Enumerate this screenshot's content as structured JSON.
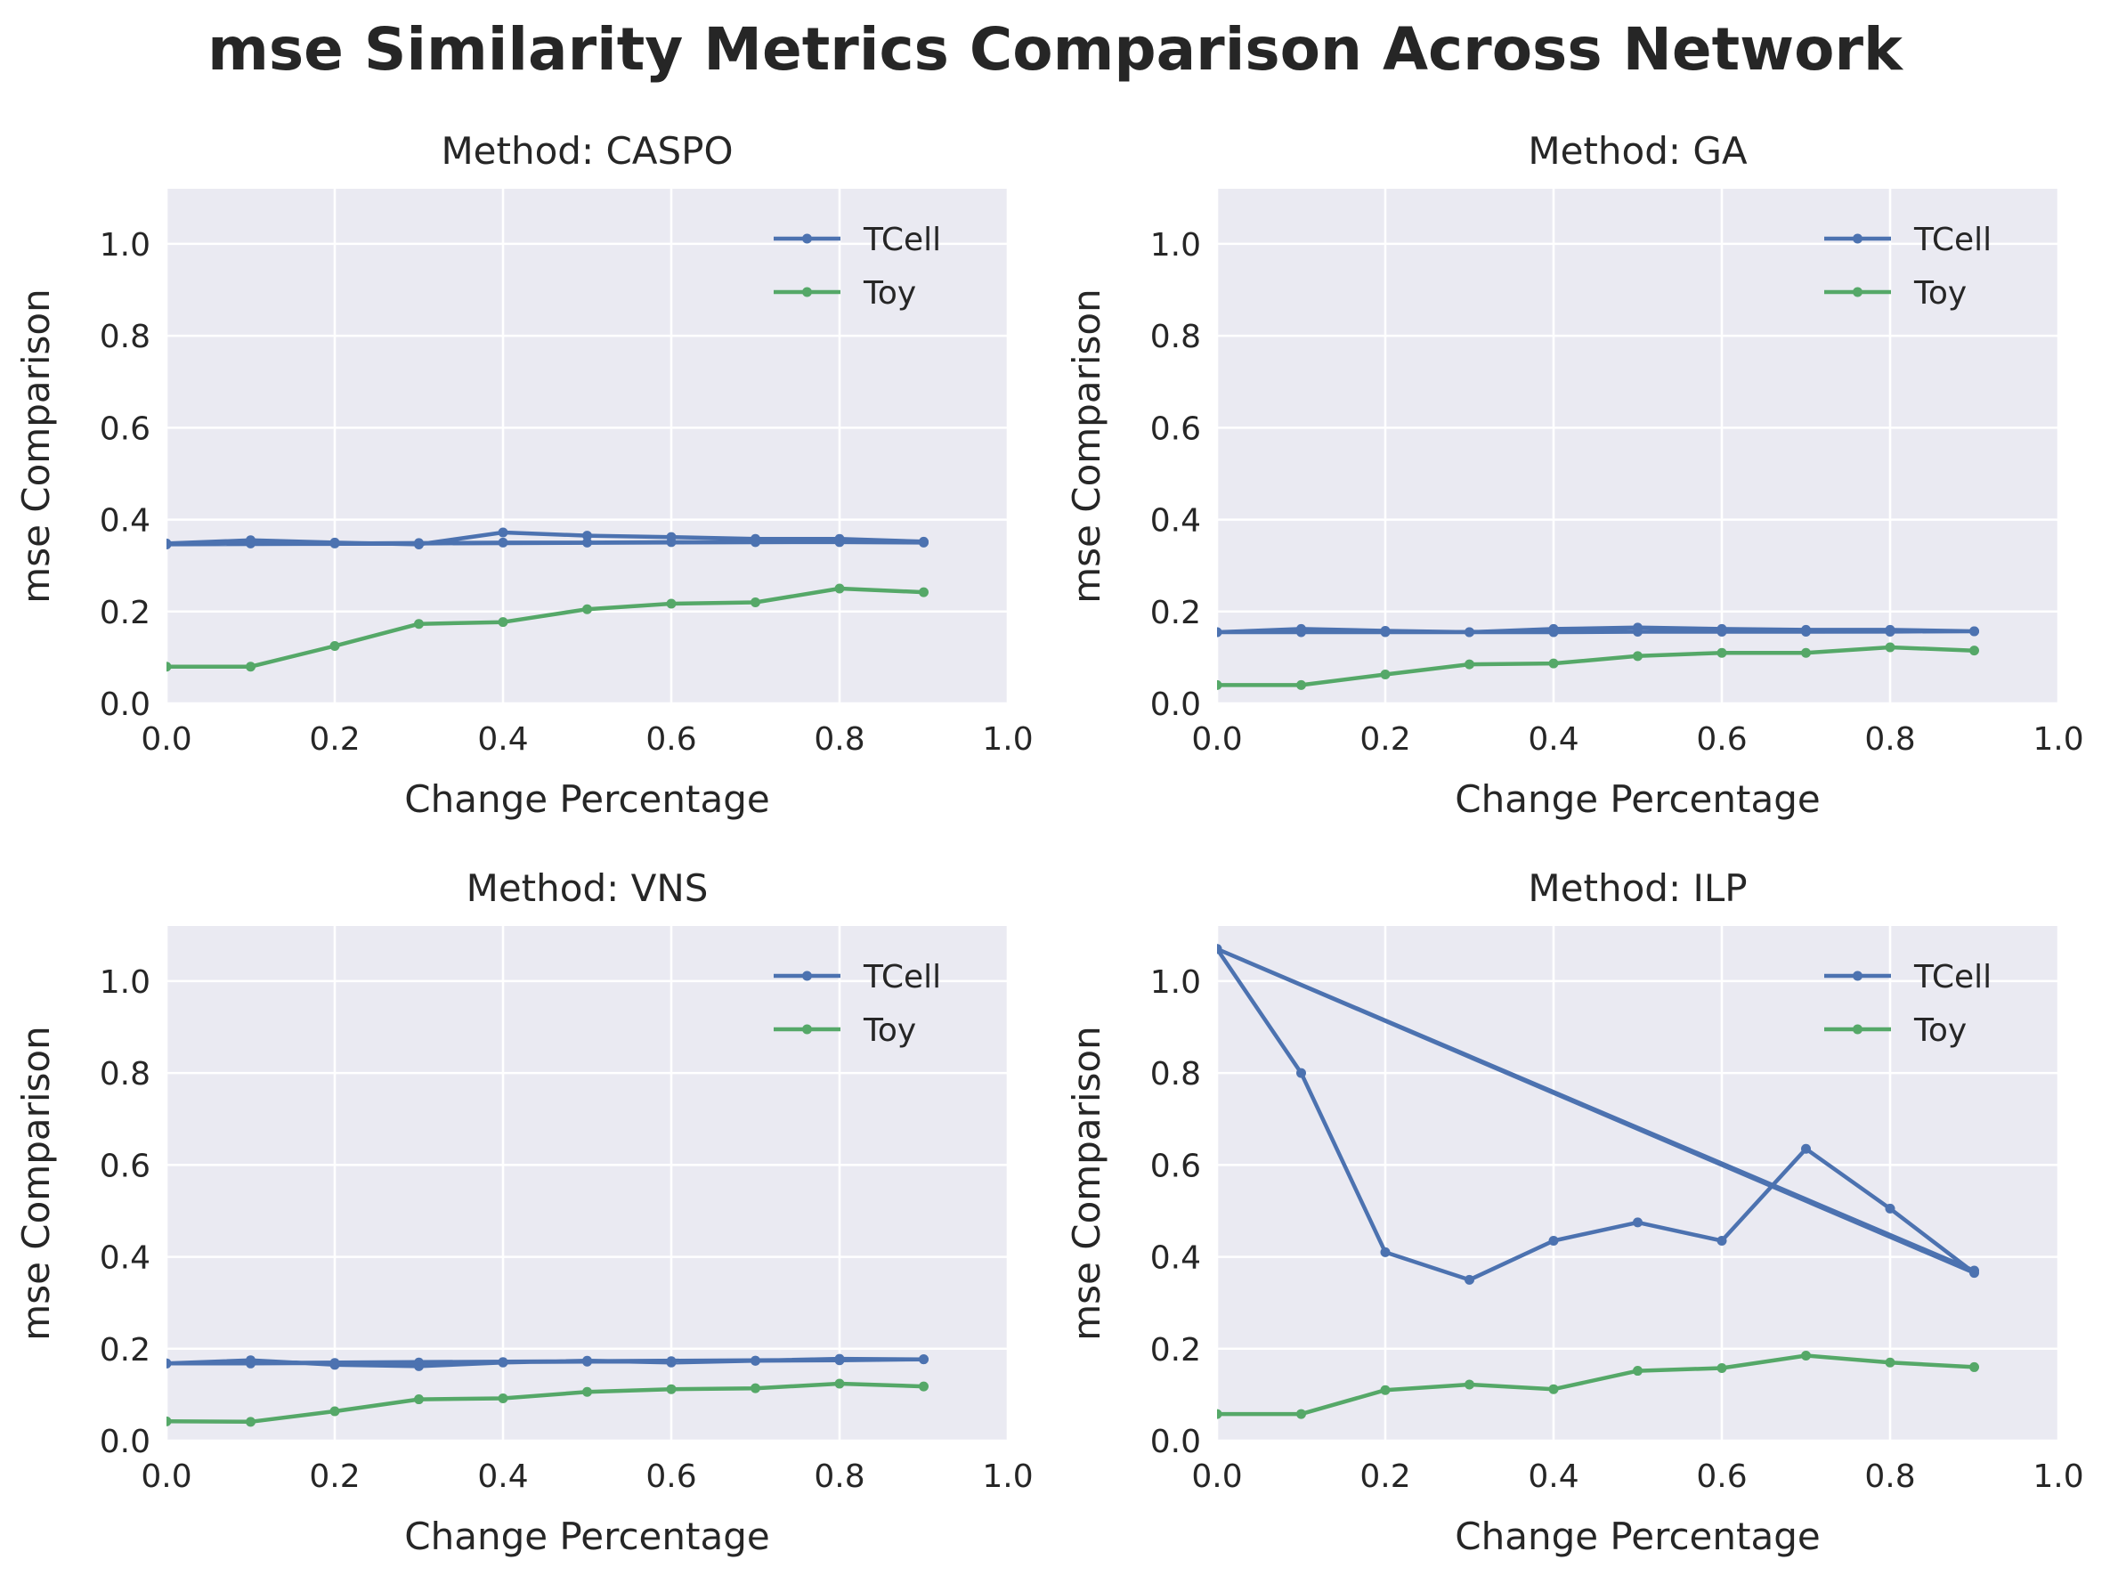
{
  "figure": {
    "title": "mse Similarity Metrics Comparison Across Network"
  },
  "chart_data": [
    {
      "type": "line",
      "title": "Method: CASPO",
      "xlabel": "Change Percentage",
      "ylabel": "mse Comparison",
      "xlim": [
        0.0,
        1.0
      ],
      "ylim": [
        0.0,
        1.12
      ],
      "xticks": [
        "0.0",
        "0.2",
        "0.4",
        "0.6",
        "0.8",
        "1.0"
      ],
      "yticks": [
        "0.0",
        "0.2",
        "0.4",
        "0.6",
        "0.8",
        "1.0"
      ],
      "grid": true,
      "legend": "top-right",
      "series": [
        {
          "name": "TCell",
          "color": "#4c72b0",
          "x": [
            0.0,
            0.1,
            0.2,
            0.3,
            0.4,
            0.5,
            0.6,
            0.7,
            0.8,
            0.9,
            0.0,
            0.1,
            0.2,
            0.3,
            0.4,
            0.5,
            0.6,
            0.7,
            0.8,
            0.9
          ],
          "y": [
            0.348,
            0.355,
            0.35,
            0.346,
            0.372,
            0.365,
            0.362,
            0.358,
            0.358,
            0.352,
            0.346,
            0.348,
            0.348,
            0.349,
            0.35,
            0.35,
            0.351,
            0.351,
            0.351,
            0.35
          ]
        },
        {
          "name": "Toy",
          "color": "#55a868",
          "x": [
            0.0,
            0.1,
            0.2,
            0.3,
            0.4,
            0.5,
            0.6,
            0.7,
            0.8,
            0.9
          ],
          "y": [
            0.08,
            0.08,
            0.125,
            0.173,
            0.177,
            0.205,
            0.217,
            0.22,
            0.25,
            0.242
          ]
        }
      ]
    },
    {
      "type": "line",
      "title": "Method: GA",
      "xlabel": "Change Percentage",
      "ylabel": "mse Comparison",
      "xlim": [
        0.0,
        1.0
      ],
      "ylim": [
        0.0,
        1.12
      ],
      "xticks": [
        "0.0",
        "0.2",
        "0.4",
        "0.6",
        "0.8",
        "1.0"
      ],
      "yticks": [
        "0.0",
        "0.2",
        "0.4",
        "0.6",
        "0.8",
        "1.0"
      ],
      "grid": true,
      "legend": "top-right",
      "series": [
        {
          "name": "TCell",
          "color": "#4c72b0",
          "x": [
            0.0,
            0.1,
            0.2,
            0.3,
            0.4,
            0.5,
            0.6,
            0.7,
            0.8,
            0.9,
            0.0,
            0.1,
            0.2,
            0.3,
            0.4,
            0.5,
            0.6,
            0.7,
            0.8,
            0.9
          ],
          "y": [
            0.155,
            0.162,
            0.158,
            0.155,
            0.162,
            0.165,
            0.162,
            0.16,
            0.16,
            0.157,
            0.155,
            0.155,
            0.155,
            0.155,
            0.155,
            0.156,
            0.156,
            0.156,
            0.156,
            0.157
          ]
        },
        {
          "name": "Toy",
          "color": "#55a868",
          "x": [
            0.0,
            0.1,
            0.2,
            0.3,
            0.4,
            0.5,
            0.6,
            0.7,
            0.8,
            0.9
          ],
          "y": [
            0.04,
            0.04,
            0.063,
            0.085,
            0.087,
            0.103,
            0.11,
            0.11,
            0.122,
            0.115
          ]
        }
      ]
    },
    {
      "type": "line",
      "title": "Method: VNS",
      "xlabel": "Change Percentage",
      "ylabel": "mse Comparison",
      "xlim": [
        0.0,
        1.0
      ],
      "ylim": [
        0.0,
        1.12
      ],
      "xticks": [
        "0.0",
        "0.2",
        "0.4",
        "0.6",
        "0.8",
        "1.0"
      ],
      "yticks": [
        "0.0",
        "0.2",
        "0.4",
        "0.6",
        "0.8",
        "1.0"
      ],
      "grid": true,
      "legend": "top-right",
      "series": [
        {
          "name": "TCell",
          "color": "#4c72b0",
          "x": [
            0.0,
            0.1,
            0.2,
            0.3,
            0.4,
            0.5,
            0.6,
            0.7,
            0.8,
            0.9,
            0.0,
            0.1,
            0.2,
            0.3,
            0.4,
            0.5,
            0.6,
            0.7,
            0.8,
            0.9
          ],
          "y": [
            0.168,
            0.175,
            0.165,
            0.162,
            0.17,
            0.174,
            0.17,
            0.174,
            0.178,
            0.177,
            0.168,
            0.168,
            0.169,
            0.17,
            0.171,
            0.172,
            0.173,
            0.174,
            0.175,
            0.177
          ]
        },
        {
          "name": "Toy",
          "color": "#55a868",
          "x": [
            0.0,
            0.1,
            0.2,
            0.3,
            0.4,
            0.5,
            0.6,
            0.7,
            0.8,
            0.9
          ],
          "y": [
            0.042,
            0.041,
            0.064,
            0.09,
            0.092,
            0.106,
            0.112,
            0.114,
            0.124,
            0.118
          ]
        }
      ]
    },
    {
      "type": "line",
      "title": "Method: ILP",
      "xlabel": "Change Percentage",
      "ylabel": "mse Comparison",
      "xlim": [
        0.0,
        1.0
      ],
      "ylim": [
        0.0,
        1.12
      ],
      "xticks": [
        "0.0",
        "0.2",
        "0.4",
        "0.6",
        "0.8",
        "1.0"
      ],
      "yticks": [
        "0.0",
        "0.2",
        "0.4",
        "0.6",
        "0.8",
        "1.0"
      ],
      "grid": true,
      "legend": "top-right",
      "series": [
        {
          "name": "TCell",
          "color": "#4c72b0",
          "x": [
            0.0,
            0.1,
            0.2,
            0.3,
            0.4,
            0.5,
            0.6,
            0.7,
            0.8,
            0.9,
            0.0,
            0.9
          ],
          "y": [
            1.07,
            0.8,
            0.41,
            0.35,
            0.435,
            0.475,
            0.435,
            0.635,
            0.505,
            0.365,
            1.07,
            0.37
          ]
        },
        {
          "name": "Toy",
          "color": "#55a868",
          "x": [
            0.0,
            0.1,
            0.2,
            0.3,
            0.4,
            0.5,
            0.6,
            0.7,
            0.8,
            0.9
          ],
          "y": [
            0.058,
            0.058,
            0.11,
            0.122,
            0.112,
            0.152,
            0.158,
            0.185,
            0.17,
            0.16
          ]
        }
      ]
    }
  ]
}
